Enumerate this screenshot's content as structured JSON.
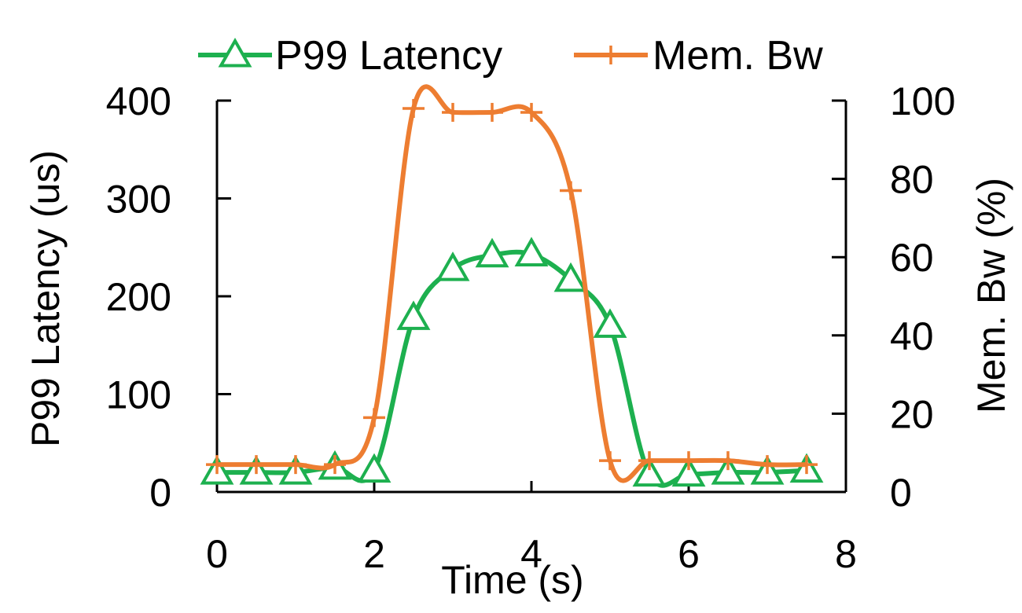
{
  "chart_data": {
    "type": "line",
    "title": "",
    "xlabel": "Time (s)",
    "ylabel": "P99 Latency (us)",
    "y2label": "Mem. Bw (%)",
    "xlim": [
      0,
      8
    ],
    "ylim": [
      0,
      400
    ],
    "y2lim": [
      0,
      100
    ],
    "xticks": [
      "0",
      "2",
      "4",
      "6",
      "8"
    ],
    "yticks": [
      "0",
      "100",
      "200",
      "300",
      "400"
    ],
    "y2ticks": [
      "0",
      "20",
      "40",
      "60",
      "80",
      "100"
    ],
    "grid": false,
    "legend_position": "top",
    "series": [
      {
        "name": "P99 Latency",
        "axis": "left",
        "color": "#1db04f",
        "marker": "triangle",
        "x": [
          0,
          0.5,
          1,
          1.5,
          2,
          2.5,
          3,
          3.5,
          4,
          4.5,
          5,
          5.5,
          6,
          6.5,
          7,
          7.5
        ],
        "values": [
          20,
          20,
          20,
          25,
          22,
          178,
          228,
          242,
          243,
          217,
          170,
          18,
          18,
          20,
          20,
          22
        ]
      },
      {
        "name": "Mem. Bw",
        "axis": "right",
        "color": "#ed7d31",
        "marker": "plus",
        "x": [
          0,
          0.5,
          1,
          1.5,
          2,
          2.5,
          3,
          3.5,
          4,
          4.5,
          5,
          5.5,
          6,
          6.5,
          7,
          7.5
        ],
        "values": [
          7,
          7,
          7,
          7,
          19,
          98,
          97,
          97,
          97,
          77,
          8,
          8,
          8,
          8,
          7,
          7
        ]
      }
    ]
  }
}
